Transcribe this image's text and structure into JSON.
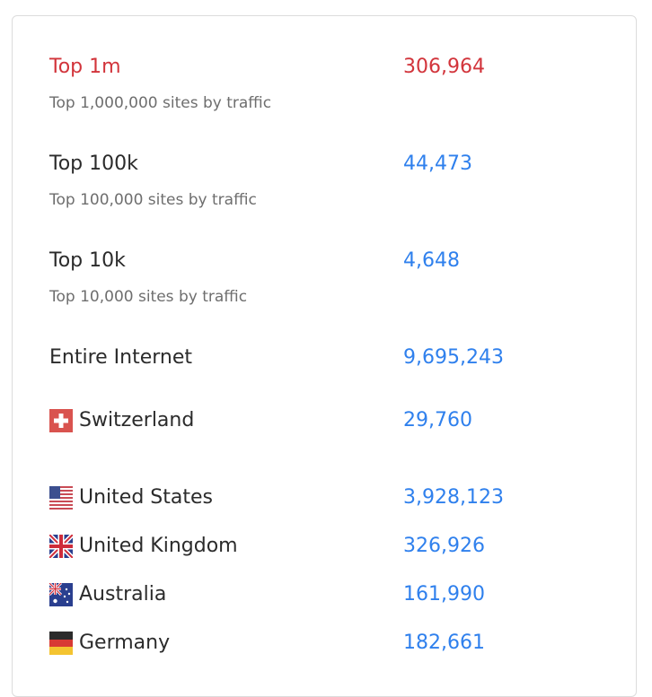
{
  "rankings": [
    {
      "label": "Top 1m",
      "value": "306,964",
      "subtitle": "Top 1,000,000 sites by traffic",
      "active": true
    },
    {
      "label": "Top 100k",
      "value": "44,473",
      "subtitle": "Top 100,000 sites by traffic"
    },
    {
      "label": "Top 10k",
      "value": "4,648",
      "subtitle": "Top 10,000 sites by traffic"
    },
    {
      "label": "Entire Internet",
      "value": "9,695,243"
    }
  ],
  "countries": [
    {
      "label": "Switzerland",
      "value": "29,760",
      "flag_icon": "swiss-flag-icon"
    },
    {
      "label": "United States",
      "value": "3,928,123",
      "flag_icon": "us-flag-icon"
    },
    {
      "label": "United Kingdom",
      "value": "326,926",
      "flag_icon": "uk-flag-icon"
    },
    {
      "label": "Australia",
      "value": "161,990",
      "flag_icon": "australia-flag-icon"
    },
    {
      "label": "Germany",
      "value": "182,661",
      "flag_icon": "germany-flag-icon"
    }
  ],
  "colors": {
    "active": "#d2343b",
    "link": "#2f80ed",
    "text": "#2b2b2b",
    "muted": "#6e6e6e"
  }
}
